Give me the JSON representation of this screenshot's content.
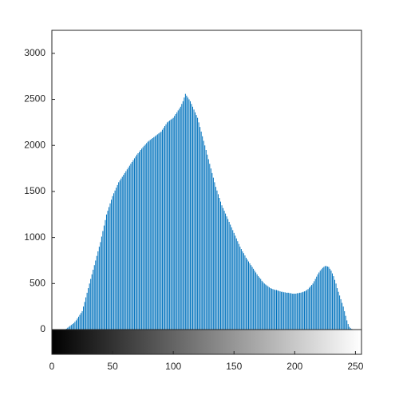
{
  "chart_data": {
    "type": "stem",
    "x": [
      0,
      1,
      2,
      3,
      4,
      5,
      6,
      7,
      8,
      9,
      10,
      11,
      12,
      13,
      14,
      15,
      16,
      17,
      18,
      19,
      20,
      21,
      22,
      23,
      24,
      25,
      26,
      27,
      28,
      29,
      30,
      31,
      32,
      33,
      34,
      35,
      36,
      37,
      38,
      39,
      40,
      41,
      42,
      43,
      44,
      45,
      46,
      47,
      48,
      49,
      50,
      51,
      52,
      53,
      54,
      55,
      56,
      57,
      58,
      59,
      60,
      61,
      62,
      63,
      64,
      65,
      66,
      67,
      68,
      69,
      70,
      71,
      72,
      73,
      74,
      75,
      76,
      77,
      78,
      79,
      80,
      81,
      82,
      83,
      84,
      85,
      86,
      87,
      88,
      89,
      90,
      91,
      92,
      93,
      94,
      95,
      96,
      97,
      98,
      99,
      100,
      101,
      102,
      103,
      104,
      105,
      106,
      107,
      108,
      109,
      110,
      111,
      112,
      113,
      114,
      115,
      116,
      117,
      118,
      119,
      120,
      121,
      122,
      123,
      124,
      125,
      126,
      127,
      128,
      129,
      130,
      131,
      132,
      133,
      134,
      135,
      136,
      137,
      138,
      139,
      140,
      141,
      142,
      143,
      144,
      145,
      146,
      147,
      148,
      149,
      150,
      151,
      152,
      153,
      154,
      155,
      156,
      157,
      158,
      159,
      160,
      161,
      162,
      163,
      164,
      165,
      166,
      167,
      168,
      169,
      170,
      171,
      172,
      173,
      174,
      175,
      176,
      177,
      178,
      179,
      180,
      181,
      182,
      183,
      184,
      185,
      186,
      187,
      188,
      189,
      190,
      191,
      192,
      193,
      194,
      195,
      196,
      197,
      198,
      199,
      200,
      201,
      202,
      203,
      204,
      205,
      206,
      207,
      208,
      209,
      210,
      211,
      212,
      213,
      214,
      215,
      216,
      217,
      218,
      219,
      220,
      221,
      222,
      223,
      224,
      225,
      226,
      227,
      228,
      229,
      230,
      231,
      232,
      233,
      234,
      235,
      236,
      237,
      238,
      239,
      240,
      241,
      242,
      243,
      244,
      245,
      246,
      247,
      248,
      249,
      250,
      251,
      252,
      253,
      254,
      255
    ],
    "values": [
      0,
      0,
      0,
      0,
      0,
      0,
      0,
      0,
      0,
      0,
      0,
      0,
      10,
      20,
      30,
      40,
      50,
      60,
      70,
      85,
      100,
      120,
      140,
      160,
      180,
      200,
      250,
      300,
      350,
      400,
      450,
      500,
      550,
      600,
      650,
      700,
      750,
      800,
      850,
      900,
      950,
      1010,
      1070,
      1130,
      1190,
      1250,
      1290,
      1330,
      1370,
      1410,
      1450,
      1480,
      1510,
      1540,
      1570,
      1600,
      1620,
      1640,
      1660,
      1680,
      1700,
      1720,
      1740,
      1760,
      1780,
      1800,
      1820,
      1840,
      1860,
      1880,
      1900,
      1915,
      1930,
      1950,
      1965,
      1980,
      1995,
      2010,
      2025,
      2040,
      2050,
      2060,
      2070,
      2080,
      2090,
      2100,
      2110,
      2120,
      2130,
      2140,
      2150,
      2170,
      2190,
      2210,
      2230,
      2250,
      2260,
      2270,
      2280,
      2290,
      2300,
      2320,
      2340,
      2360,
      2380,
      2400,
      2420,
      2450,
      2480,
      2520,
      2560,
      2540,
      2520,
      2500,
      2480,
      2450,
      2420,
      2390,
      2360,
      2330,
      2300,
      2250,
      2200,
      2150,
      2100,
      2050,
      2000,
      1950,
      1900,
      1850,
      1800,
      1750,
      1700,
      1650,
      1600,
      1550,
      1510,
      1470,
      1430,
      1390,
      1350,
      1320,
      1290,
      1260,
      1230,
      1200,
      1170,
      1140,
      1110,
      1080,
      1050,
      1020,
      990,
      960,
      930,
      900,
      875,
      850,
      830,
      805,
      780,
      760,
      740,
      720,
      700,
      680,
      660,
      640,
      620,
      600,
      580,
      565,
      550,
      530,
      515,
      500,
      490,
      480,
      470,
      460,
      450,
      445,
      440,
      435,
      430,
      430,
      425,
      420,
      415,
      410,
      410,
      405,
      405,
      400,
      400,
      400,
      395,
      395,
      390,
      390,
      390,
      390,
      395,
      395,
      400,
      400,
      405,
      410,
      415,
      420,
      430,
      440,
      455,
      470,
      485,
      500,
      525,
      550,
      575,
      600,
      620,
      640,
      655,
      670,
      680,
      690,
      690,
      685,
      680,
      660,
      640,
      610,
      580,
      540,
      500,
      450,
      410,
      370,
      330,
      290,
      250,
      200,
      150,
      100,
      60,
      30,
      15,
      8,
      3,
      0,
      0,
      0,
      0,
      0,
      0,
      0
    ],
    "color": "#0072bd",
    "xlim": [
      0,
      255
    ],
    "xticks": [
      0,
      50,
      100,
      150,
      200,
      250
    ],
    "ylim": [
      0,
      3250
    ],
    "yticks": [
      0,
      500,
      1000,
      1500,
      2000,
      2500,
      3000
    ]
  }
}
